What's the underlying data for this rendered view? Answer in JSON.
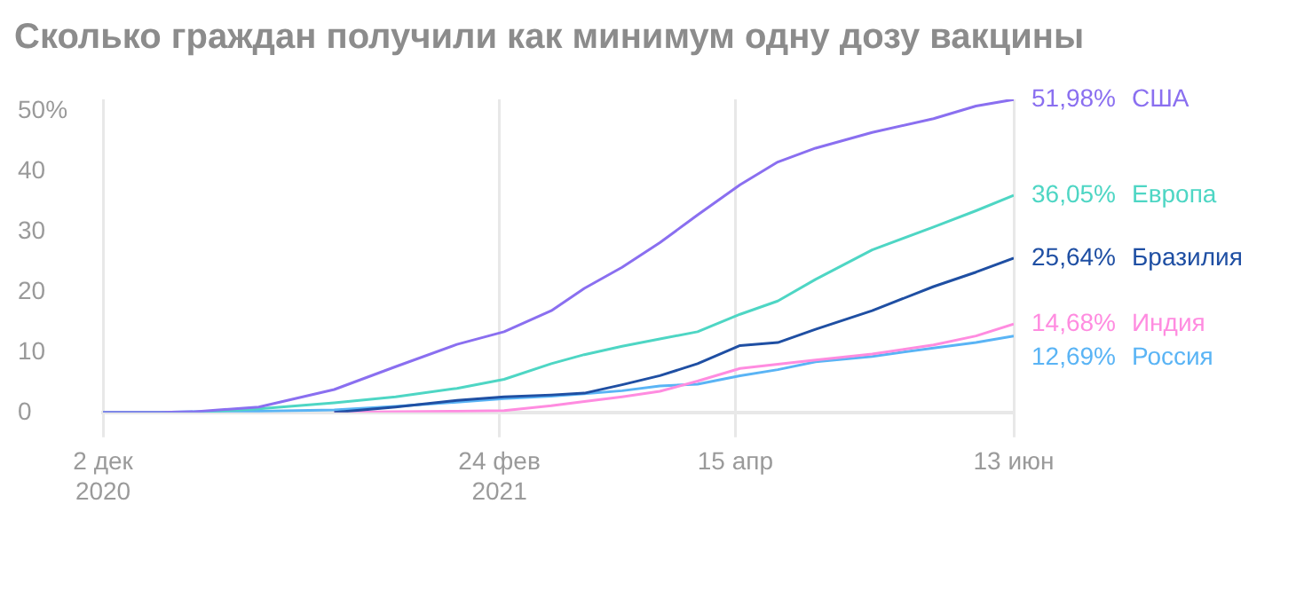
{
  "chart_data": {
    "type": "line",
    "title": "Сколько граждан получили как минимум одну дозу вакцины",
    "x": [
      "2020-12-02",
      "2020-12-14",
      "2020-12-21",
      "2021-01-04",
      "2021-01-20",
      "2021-02-02",
      "2021-02-15",
      "2021-02-25",
      "2021-03-07",
      "2021-03-14",
      "2021-03-22",
      "2021-03-30",
      "2021-04-07",
      "2021-04-16",
      "2021-04-24",
      "2021-05-02",
      "2021-05-14",
      "2021-05-27",
      "2021-06-05",
      "2021-06-13"
    ],
    "series": [
      {
        "name": "США",
        "color": "#8a6ff0",
        "values": [
          0,
          0,
          0.1,
          0.9,
          3.8,
          7.6,
          11.3,
          13.4,
          16.9,
          20.6,
          24.1,
          28.2,
          32.8,
          37.8,
          41.6,
          43.9,
          46.5,
          48.8,
          50.9,
          51.98
        ],
        "value_labels": [
          null,
          null,
          null,
          null,
          null,
          null,
          null,
          null,
          null,
          null,
          null,
          null,
          null,
          null,
          null,
          null,
          null,
          null,
          null,
          "51,98%"
        ]
      },
      {
        "name": "Европа",
        "color": "#4ed6c4",
        "values": [
          0,
          0,
          0,
          0.6,
          1.6,
          2.6,
          4,
          5.5,
          8.1,
          9.6,
          11,
          12.2,
          13.4,
          16.3,
          18.5,
          22.1,
          27,
          30.8,
          33.5,
          36.05
        ],
        "value_labels": [
          null,
          null,
          null,
          null,
          null,
          null,
          null,
          null,
          null,
          null,
          null,
          null,
          null,
          null,
          null,
          null,
          null,
          null,
          null,
          "36,05%"
        ]
      },
      {
        "name": "Бразилия",
        "color": "#1f4fa3",
        "values": [
          null,
          null,
          null,
          null,
          0,
          0.9,
          2,
          2.6,
          2.9,
          3.2,
          4.6,
          6.1,
          8.1,
          11.1,
          11.6,
          13.8,
          16.9,
          20.9,
          23.3,
          25.64
        ],
        "value_labels": [
          null,
          null,
          null,
          null,
          null,
          null,
          null,
          null,
          null,
          null,
          null,
          null,
          null,
          null,
          null,
          null,
          null,
          null,
          null,
          "25,64%"
        ]
      },
      {
        "name": "Индия",
        "color": "#ff8ce0",
        "values": [
          null,
          null,
          null,
          null,
          0,
          0.1,
          0.2,
          0.3,
          1.1,
          1.8,
          2.6,
          3.5,
          5.2,
          7.3,
          8,
          8.7,
          9.7,
          11.2,
          12.7,
          14.68
        ],
        "value_labels": [
          null,
          null,
          null,
          null,
          null,
          null,
          null,
          null,
          null,
          null,
          null,
          null,
          null,
          null,
          null,
          null,
          null,
          null,
          null,
          "14,68%"
        ]
      },
      {
        "name": "Россия",
        "color": "#5ab4f5",
        "values": [
          0,
          0,
          0.1,
          0.2,
          0.4,
          1,
          1.7,
          2.3,
          2.7,
          3.1,
          3.6,
          4.4,
          4.7,
          6.1,
          7.1,
          8.4,
          9.3,
          10.7,
          11.6,
          12.69
        ],
        "value_labels": [
          null,
          null,
          null,
          null,
          null,
          null,
          null,
          null,
          null,
          null,
          null,
          null,
          null,
          null,
          null,
          null,
          null,
          null,
          null,
          "12,69%"
        ]
      }
    ],
    "xlim": [
      "2020-12-02",
      "2021-06-13"
    ],
    "xticks": [
      {
        "value": "2020-12-02",
        "label": "2 дек 2020"
      },
      {
        "value": "2021-02-24",
        "label": "24 фев 2021"
      },
      {
        "value": "2021-04-15",
        "label": "15 апр"
      },
      {
        "value": "2021-06-13",
        "label": "13 июн"
      }
    ],
    "ylim": [
      0,
      52
    ],
    "yticks": [
      0,
      10,
      20,
      30,
      40,
      {
        "value": 50,
        "label": "50%"
      }
    ],
    "grid": "x",
    "legend": false,
    "marker": "none",
    "line_style": "solid"
  }
}
